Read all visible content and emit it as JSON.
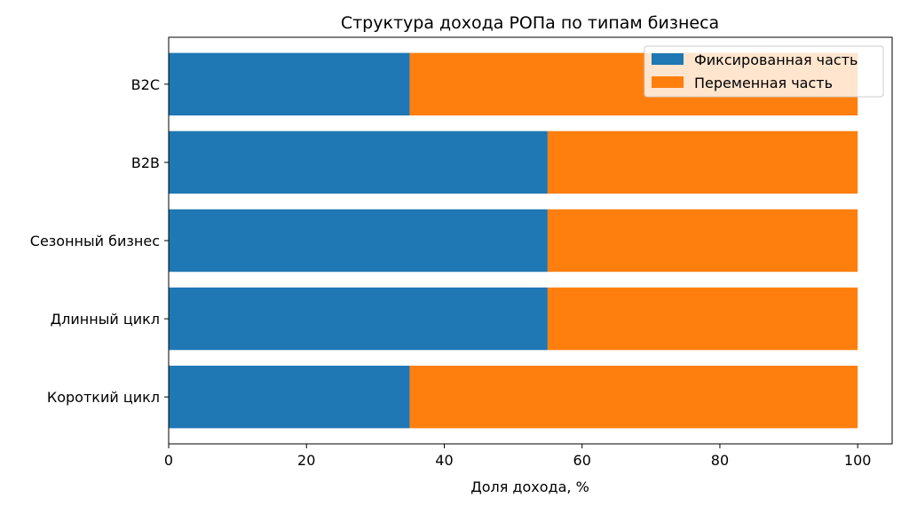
{
  "chart_data": {
    "type": "bar",
    "orientation": "horizontal",
    "stacked": true,
    "title": "Структура дохода РОПа по типам бизнеса",
    "xlabel": "Доля дохода, %",
    "ylabel": "",
    "xlim": [
      0,
      105
    ],
    "xticks": [
      "0",
      "20",
      "40",
      "60",
      "80",
      "100"
    ],
    "categories": [
      "Короткий цикл",
      "Длинный цикл",
      "Сезонный бизнес",
      "B2B",
      "B2C"
    ],
    "series": [
      {
        "name": "Фиксированная часть",
        "color": "#1f77b4",
        "values": [
          35,
          55,
          55,
          55,
          35
        ]
      },
      {
        "name": "Переменная часть",
        "color": "#ff7f0e",
        "values": [
          65,
          45,
          45,
          45,
          65
        ]
      }
    ],
    "grid": false,
    "legend_position": "top-right"
  }
}
